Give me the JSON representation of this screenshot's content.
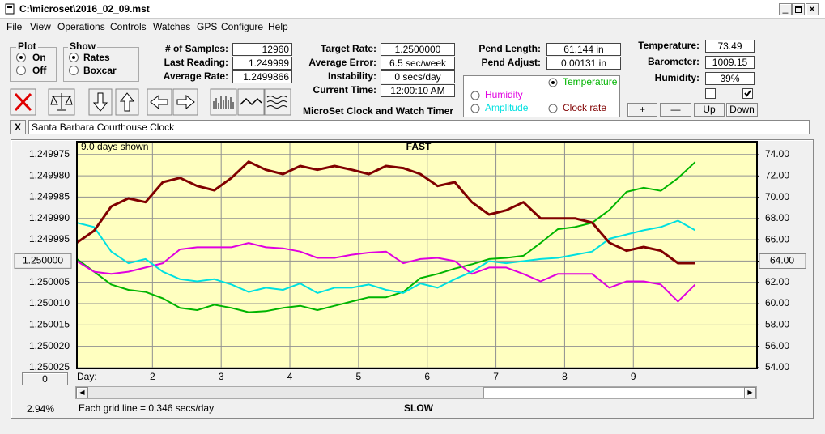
{
  "window": {
    "title": "C:\\microset\\2016_02_09.mst"
  },
  "menu": [
    "File",
    "View",
    "Operations",
    "Controls",
    "Watches",
    "GPS",
    "Configure",
    "Help"
  ],
  "plot_group": {
    "title": "Plot",
    "options": [
      "On",
      "Off"
    ],
    "selected": 0
  },
  "show_group": {
    "title": "Show",
    "options": [
      "Rates",
      "Boxcar"
    ],
    "selected": 0
  },
  "fields": [
    [
      {
        "label": "# of Samples:",
        "value": "12960"
      },
      {
        "label": "Last Reading:",
        "value": "1.249999"
      },
      {
        "label": "Average Rate:",
        "value": "1.2499866"
      }
    ],
    [
      {
        "label": "Target Rate:",
        "value": "1.2500000"
      },
      {
        "label": "Average Error:",
        "value": "6.5 sec/week"
      },
      {
        "label": "Instability:",
        "value": "0 secs/day"
      },
      {
        "label": "Current Time:",
        "value": "12:00:10 AM"
      }
    ],
    [
      {
        "label": "Pend Length:",
        "value": "61.144 in"
      },
      {
        "label": "Pend Adjust:",
        "value": "0.00131 in"
      }
    ],
    [
      {
        "label": "Temperature:",
        "value": "73.49"
      },
      {
        "label": "Barometer:",
        "value": "1009.15"
      },
      {
        "label": "Humidity:",
        "value": "39%"
      }
    ]
  ],
  "checkboxes": [
    false,
    true
  ],
  "app_title": "MicroSet Clock and Watch Timer",
  "buttons": [
    "+",
    "—",
    "Up",
    "Down"
  ],
  "clear_button": "X",
  "watch_name": "Santa Barbara Courthouse Clock",
  "status": {
    "scale_box": "0",
    "percent": "2.94%"
  },
  "chart_data": {
    "type": "line",
    "days_shown": "9.0 days shown",
    "top_label": "FAST",
    "bottom_label": "SLOW",
    "x_label": "Day:",
    "footnote": "Each grid line = 0.346 secs/day",
    "x": [
      0.9,
      1.15,
      1.4,
      1.65,
      1.9,
      2.15,
      2.4,
      2.65,
      2.9,
      3.15,
      3.4,
      3.65,
      3.9,
      4.15,
      4.4,
      4.65,
      4.9,
      5.15,
      5.4,
      5.65,
      5.9,
      6.15,
      6.4,
      6.65,
      6.9,
      7.15,
      7.4,
      7.65,
      7.9,
      8.15,
      8.4,
      8.65,
      8.9,
      9.15,
      9.4,
      9.65,
      9.9
    ],
    "xlim": [
      0.9,
      10.8
    ],
    "xticks": [
      2,
      3,
      4,
      5,
      6,
      7,
      8,
      9
    ],
    "ylim": [
      1.2500252,
      1.249972
    ],
    "yticks": [
      1.249975,
      {
        "value": 1.24998,
        "label": "1.249980"
      },
      1.249985,
      {
        "value": 1.24999,
        "label": "1.249990"
      },
      1.249995,
      {
        "value": 1.25,
        "label": "1.250000"
      },
      1.250005,
      {
        "value": 1.25001,
        "label": "1.250010"
      },
      1.250015,
      {
        "value": 1.25002,
        "label": "1.250020"
      },
      1.250025
    ],
    "y2lim": [
      53.92,
      75.22
    ],
    "y2ticks": [
      {
        "value": 54,
        "label": "54.00"
      },
      {
        "value": 56,
        "label": "56.00"
      },
      {
        "value": 58,
        "label": "58.00"
      },
      {
        "value": 60,
        "label": "60.00"
      },
      {
        "value": 62,
        "label": "62.00"
      },
      {
        "value": 64,
        "label": "64.00"
      },
      {
        "value": 66,
        "label": "66.00"
      },
      {
        "value": 68,
        "label": "68.00"
      },
      {
        "value": 70,
        "label": "70.00"
      },
      {
        "value": 72,
        "label": "72.00"
      },
      {
        "value": 74,
        "label": "74.00"
      }
    ],
    "grid": true,
    "series": [
      {
        "name": "Temperature",
        "color": "#00b400",
        "axis": "y2",
        "selected": true,
        "values": [
          64.2,
          63.0,
          61.8,
          61.3,
          61.1,
          60.5,
          59.6,
          59.4,
          59.9,
          59.6,
          59.2,
          59.3,
          59.6,
          59.8,
          59.4,
          59.8,
          60.2,
          60.6,
          60.6,
          61.1,
          62.4,
          62.8,
          63.3,
          63.7,
          64.2,
          64.3,
          64.5,
          65.7,
          67.0,
          67.2,
          67.6,
          68.8,
          70.5,
          70.9,
          70.6,
          71.8,
          73.3
        ]
      },
      {
        "name": "Humidity",
        "color": "#e000e0",
        "axis": "y2",
        "selected": false,
        "values": [
          64.0,
          63.0,
          62.8,
          63.0,
          63.4,
          63.8,
          65.1,
          65.3,
          65.3,
          65.3,
          65.7,
          65.3,
          65.2,
          64.9,
          64.3,
          64.3,
          64.6,
          64.8,
          64.9,
          63.8,
          64.2,
          64.3,
          64.0,
          62.8,
          63.4,
          63.4,
          62.8,
          62.1,
          62.8,
          62.8,
          62.8,
          61.5,
          62.1,
          62.1,
          61.8,
          60.2,
          61.8
        ]
      },
      {
        "name": "Amplitude",
        "color": "#00e0e0",
        "axis": "y2",
        "selected": false,
        "values": [
          67.6,
          67.2,
          64.9,
          63.8,
          64.2,
          63.0,
          62.3,
          62.1,
          62.3,
          61.8,
          61.1,
          61.5,
          61.3,
          61.9,
          61.0,
          61.5,
          61.5,
          61.8,
          61.3,
          61.0,
          61.9,
          61.5,
          62.3,
          63.0,
          64.0,
          63.8,
          64.0,
          64.2,
          64.3,
          64.6,
          64.9,
          66.1,
          66.5,
          66.9,
          67.2,
          67.8,
          66.9
        ]
      },
      {
        "name": "Clock rate",
        "color": "#800000",
        "selected": false,
        "values": [
          1.2499957,
          1.2499929,
          1.2499872,
          1.2499853,
          1.2499862,
          1.2499815,
          1.2499805,
          1.2499824,
          1.2499834,
          1.2499805,
          1.2499767,
          1.2499786,
          1.2499796,
          1.2499777,
          1.2499786,
          1.2499777,
          1.2499786,
          1.2499796,
          1.2499777,
          1.2499782,
          1.2499796,
          1.2499824,
          1.2499815,
          1.2499862,
          1.2499891,
          1.2499881,
          1.2499862,
          1.24999,
          1.24999,
          1.24999,
          1.249991,
          1.2499957,
          1.2499976,
          1.2499967,
          1.2499976,
          1.2500005,
          1.2500005
        ]
      }
    ]
  }
}
